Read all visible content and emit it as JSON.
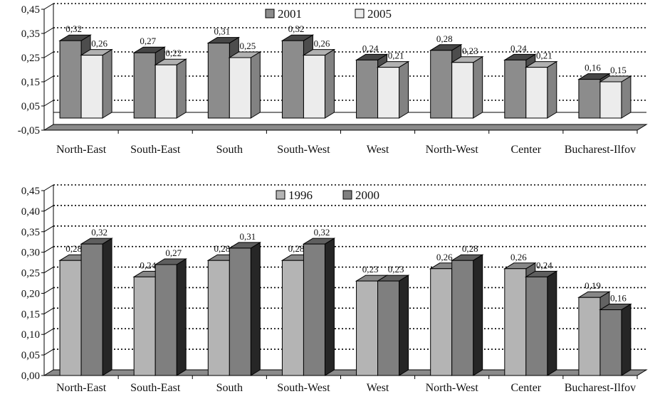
{
  "chart_data": [
    {
      "type": "bar",
      "title": "",
      "xlabel": "",
      "ylabel": "",
      "categories": [
        "North-East",
        "South-East",
        "South",
        "South-West",
        "West",
        "North-West",
        "Center",
        "Bucharest-Ilfov"
      ],
      "series": [
        {
          "name": "2001",
          "values": [
            0.32,
            0.27,
            0.31,
            0.32,
            0.24,
            0.28,
            0.24,
            0.16
          ],
          "color": "#8c8c8c"
        },
        {
          "name": "2005",
          "values": [
            0.26,
            0.22,
            0.25,
            0.26,
            0.21,
            0.23,
            0.21,
            0.15
          ],
          "color": "#ececec"
        }
      ],
      "data_labels": [
        [
          "0,32",
          "0,27",
          "0,31",
          "0,32",
          "0,24",
          "0,28",
          "0,24",
          "0,16"
        ],
        [
          "0,26",
          "0,22",
          "0,25",
          "0,26",
          "0,21",
          "0,23",
          "0,21",
          "0,15"
        ]
      ],
      "ylim": [
        -0.05,
        0.45
      ],
      "yticks": [
        "-0,05",
        "0,05",
        "0,15",
        "0,25",
        "0,35",
        "0,45"
      ],
      "legend_position": "top-center",
      "grid": true
    },
    {
      "type": "bar",
      "title": "",
      "xlabel": "",
      "ylabel": "",
      "categories": [
        "North-East",
        "South-East",
        "South",
        "South-West",
        "West",
        "North-West",
        "Center",
        "Bucharest-Ilfov"
      ],
      "series": [
        {
          "name": "1996",
          "values": [
            0.28,
            0.24,
            0.28,
            0.28,
            0.23,
            0.26,
            0.26,
            0.19
          ],
          "color": "#b4b4b4"
        },
        {
          "name": "2000",
          "values": [
            0.32,
            0.27,
            0.31,
            0.32,
            0.23,
            0.28,
            0.24,
            0.16
          ],
          "color": "#7f7f7f"
        }
      ],
      "data_labels": [
        [
          "0,28",
          "0,24",
          "0,28",
          "0,28",
          "0,23",
          "0,26",
          "0,26",
          "0,19"
        ],
        [
          "0,32",
          "0,27",
          "0,31",
          "0,32",
          "0,23",
          "0,28",
          "0,24",
          "0,16"
        ]
      ],
      "ylim": [
        0,
        0.45
      ],
      "yticks": [
        "0,00",
        "0,05",
        "0,10",
        "0,15",
        "0,20",
        "0,25",
        "0,30",
        "0,35",
        "0,40",
        "0,45"
      ],
      "legend_position": "top-center",
      "grid": true
    }
  ]
}
